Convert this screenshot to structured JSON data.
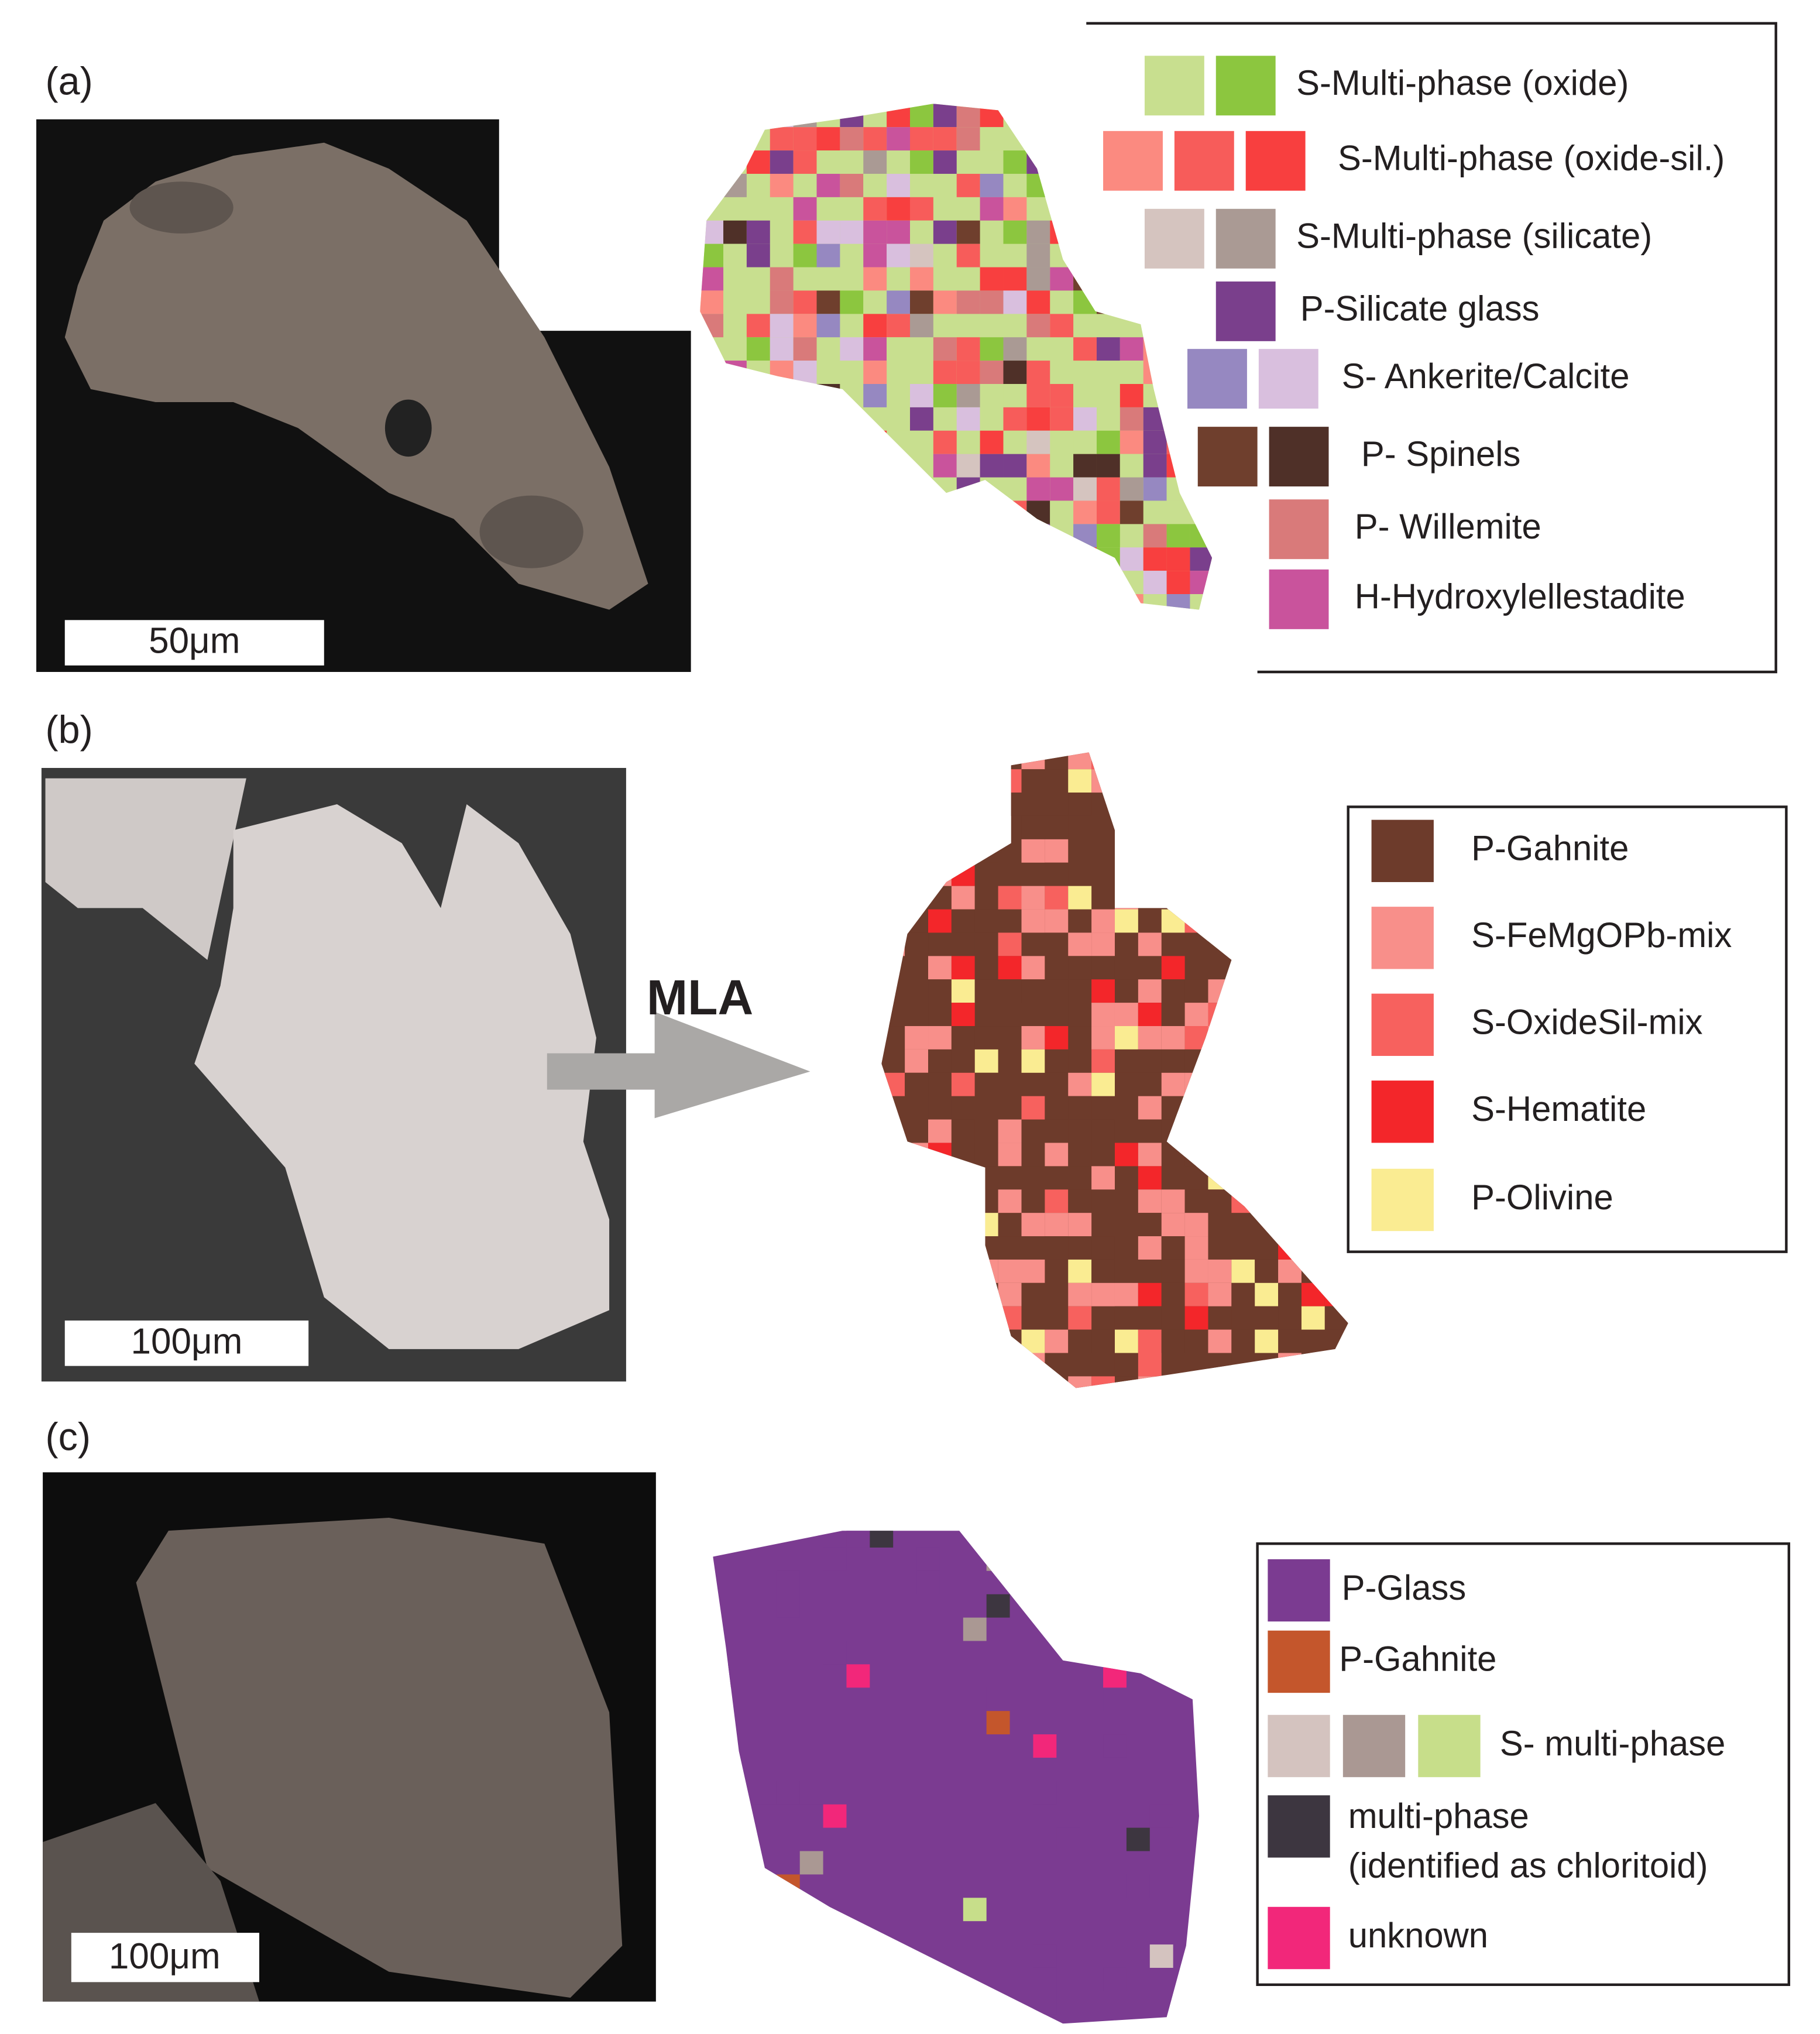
{
  "panels": [
    {
      "label": "(a)",
      "scale_bar": "50μm",
      "legend": [
        {
          "label": "S-Multi-phase (oxide)",
          "colors": [
            "#c8df8f",
            "#8cc63f"
          ]
        },
        {
          "label": "S-Multi-phase (oxide-sil.)",
          "colors": [
            "#fb8a80",
            "#f75c5a",
            "#f83f3f"
          ]
        },
        {
          "label": "S-Multi-phase (silicate)",
          "colors": [
            "#d5c4bf",
            "#aa9a94"
          ]
        },
        {
          "label": "P-Silicate glass",
          "colors": [
            "#7a3f8c"
          ]
        },
        {
          "label": "S- Ankerite/Calcite",
          "colors": [
            "#9688c1",
            "#d9bfde"
          ]
        },
        {
          "label": "P- Spinels",
          "colors": [
            "#6f3f2d",
            "#4f3028"
          ]
        },
        {
          "label": "P- Willemite",
          "colors": [
            "#d97a7a"
          ]
        },
        {
          "label": "H-Hydroxylellestadite",
          "colors": [
            "#c9539c"
          ]
        }
      ]
    },
    {
      "label": "(b)",
      "scale_bar": "100μm",
      "arrow_label": "MLA",
      "legend": [
        {
          "label": "P-Gahnite",
          "colors": [
            "#6d3b2b"
          ]
        },
        {
          "label": "S-FeMgOPb-mix",
          "colors": [
            "#f88f8a"
          ]
        },
        {
          "label": "S-OxideSil-mix",
          "colors": [
            "#f7615e"
          ]
        },
        {
          "label": "S-Hematite",
          "colors": [
            "#f3262a"
          ]
        },
        {
          "label": "P-Olivine",
          "colors": [
            "#faec92"
          ]
        }
      ]
    },
    {
      "label": "(c)",
      "scale_bar": "100μm",
      "legend": [
        {
          "label": "P-Glass",
          "colors": [
            "#7b3b91"
          ]
        },
        {
          "label": "P-Gahnite",
          "colors": [
            "#c4562c"
          ]
        },
        {
          "label": "S- multi-phase",
          "colors": [
            "#d4c3bf",
            "#aa9893",
            "#c7de8a"
          ]
        },
        {
          "label": "multi-phase (identified as chloritoid)",
          "colors": [
            "#3d3640"
          ]
        },
        {
          "label": "unknown",
          "colors": [
            "#f2277a"
          ]
        }
      ]
    }
  ]
}
